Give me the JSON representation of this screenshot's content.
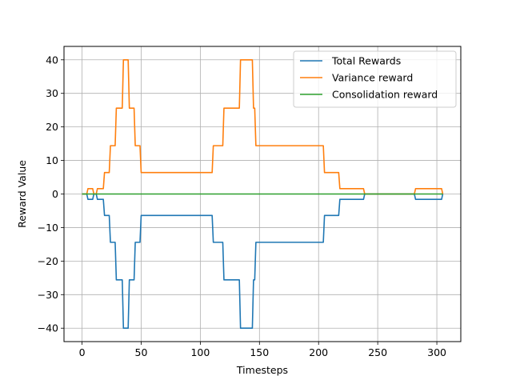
{
  "chart_data": {
    "type": "line",
    "title": "",
    "xlabel": "Timesteps",
    "ylabel": "Reward Value",
    "xlim": [
      -15.25,
      320.25
    ],
    "ylim": [
      -44,
      44
    ],
    "xticks": [
      0,
      50,
      100,
      150,
      200,
      250,
      300
    ],
    "xtick_labels": [
      "0",
      "50",
      "100",
      "150",
      "200",
      "250",
      "300"
    ],
    "yticks": [
      -40,
      -30,
      -20,
      -10,
      0,
      10,
      20,
      30,
      40
    ],
    "ytick_labels": [
      "−40",
      "−30",
      "−20",
      "−10",
      "0",
      "10",
      "20",
      "30",
      "40"
    ],
    "grid": true,
    "legend_position": "top-right",
    "series": [
      {
        "name": "Total Rewards",
        "color": "#1f77b4",
        "points": [
          [
            0,
            0
          ],
          [
            4,
            0
          ],
          [
            5,
            -1.6
          ],
          [
            9,
            -1.6
          ],
          [
            10,
            0
          ],
          [
            12,
            0
          ],
          [
            13,
            -1.6
          ],
          [
            18,
            -1.6
          ],
          [
            19,
            -6.4
          ],
          [
            23,
            -6.4
          ],
          [
            24,
            -14.4
          ],
          [
            28,
            -14.4
          ],
          [
            29,
            -25.6
          ],
          [
            34,
            -25.6
          ],
          [
            35,
            -40
          ],
          [
            39,
            -40
          ],
          [
            40,
            -25.6
          ],
          [
            44,
            -25.6
          ],
          [
            45,
            -14.4
          ],
          [
            49,
            -14.4
          ],
          [
            50,
            -6.4
          ],
          [
            110,
            -6.4
          ],
          [
            111,
            -14.4
          ],
          [
            119,
            -14.4
          ],
          [
            120,
            -25.6
          ],
          [
            133,
            -25.6
          ],
          [
            134,
            -40
          ],
          [
            144,
            -40
          ],
          [
            145,
            -25.6
          ],
          [
            146,
            -25.6
          ],
          [
            147,
            -14.4
          ],
          [
            204,
            -14.4
          ],
          [
            205,
            -6.4
          ],
          [
            217,
            -6.4
          ],
          [
            218,
            -1.6
          ],
          [
            238,
            -1.6
          ],
          [
            239,
            0
          ],
          [
            281,
            0
          ],
          [
            282,
            -1.6
          ],
          [
            304,
            -1.6
          ],
          [
            305,
            0
          ]
        ]
      },
      {
        "name": "Variance reward",
        "color": "#ff7f0e",
        "points": [
          [
            0,
            0
          ],
          [
            4,
            0
          ],
          [
            5,
            1.6
          ],
          [
            9,
            1.6
          ],
          [
            10,
            0
          ],
          [
            12,
            0
          ],
          [
            13,
            1.6
          ],
          [
            18,
            1.6
          ],
          [
            19,
            6.4
          ],
          [
            23,
            6.4
          ],
          [
            24,
            14.4
          ],
          [
            28,
            14.4
          ],
          [
            29,
            25.6
          ],
          [
            34,
            25.6
          ],
          [
            35,
            40
          ],
          [
            39,
            40
          ],
          [
            40,
            25.6
          ],
          [
            44,
            25.6
          ],
          [
            45,
            14.4
          ],
          [
            49,
            14.4
          ],
          [
            50,
            6.4
          ],
          [
            110,
            6.4
          ],
          [
            111,
            14.4
          ],
          [
            119,
            14.4
          ],
          [
            120,
            25.6
          ],
          [
            133,
            25.6
          ],
          [
            134,
            40
          ],
          [
            144,
            40
          ],
          [
            145,
            25.6
          ],
          [
            146,
            25.6
          ],
          [
            147,
            14.4
          ],
          [
            204,
            14.4
          ],
          [
            205,
            6.4
          ],
          [
            217,
            6.4
          ],
          [
            218,
            1.6
          ],
          [
            238,
            1.6
          ],
          [
            239,
            0
          ],
          [
            281,
            0
          ],
          [
            282,
            1.6
          ],
          [
            304,
            1.6
          ],
          [
            305,
            0
          ]
        ]
      },
      {
        "name": "Consolidation reward",
        "color": "#2ca02c",
        "points": [
          [
            0,
            0
          ],
          [
            305,
            0
          ]
        ]
      }
    ]
  }
}
